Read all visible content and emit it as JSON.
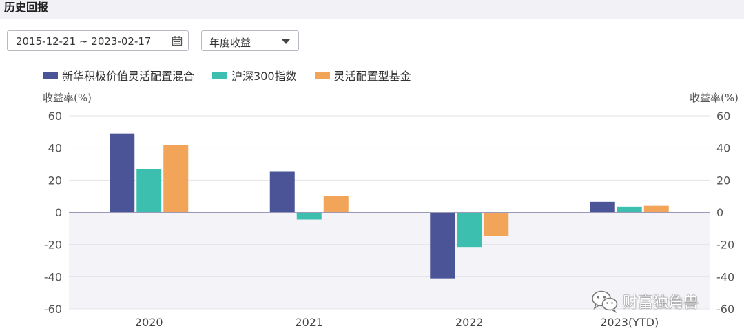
{
  "section": {
    "title": "历史回报"
  },
  "filters": {
    "date_range": "2015-12-21 ~ 2023-02-17",
    "mode": "年度收益"
  },
  "watermark": {
    "text": "财富独角兽"
  },
  "chart_data": {
    "type": "bar",
    "categories": [
      "2020",
      "2021",
      "2022",
      "2023(YTD)"
    ],
    "series": [
      {
        "name": "新华积极价值灵活配置混合",
        "color": "#4a5497",
        "values": [
          49,
          25.5,
          -41,
          6.5
        ]
      },
      {
        "name": "沪深300指数",
        "color": "#3dbfb0",
        "values": [
          27,
          -4.5,
          -21.5,
          3.5
        ]
      },
      {
        "name": "灵活配置型基金",
        "color": "#f2a459",
        "values": [
          42,
          10,
          -15,
          4
        ]
      }
    ],
    "ylabel_left": "收益率(%)",
    "ylabel_right": "收益率(%)",
    "ylim": [
      -60,
      60
    ],
    "yticks": [
      60,
      40,
      20,
      0,
      -20,
      -40,
      -60
    ],
    "grid": true,
    "legend_position": "top-left"
  }
}
